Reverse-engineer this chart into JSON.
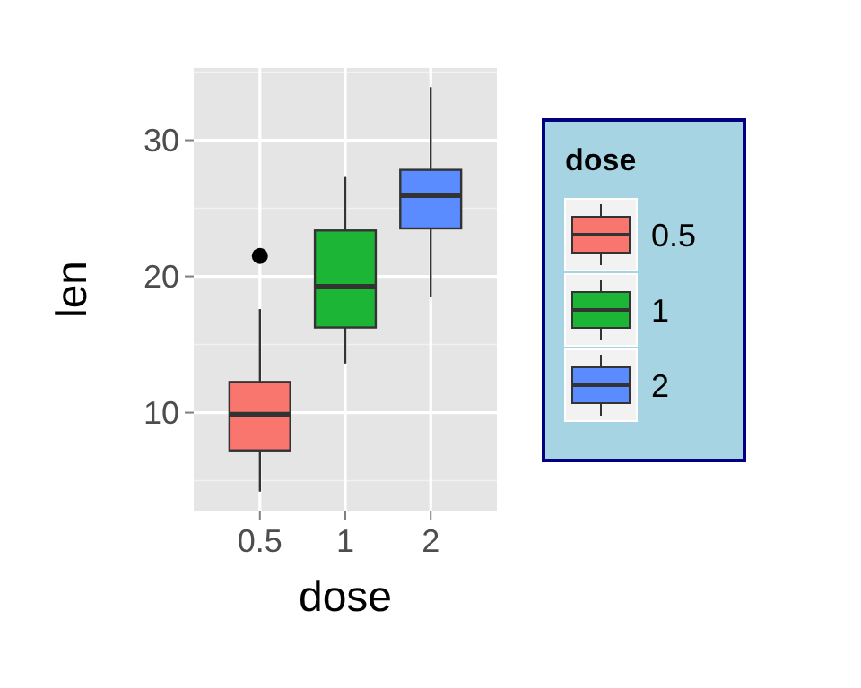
{
  "chart_data": {
    "type": "box",
    "xlabel": "dose",
    "ylabel": "len",
    "legend_title": "dose",
    "categories": [
      "0.5",
      "1",
      "2"
    ],
    "ylim": [
      2.8,
      35.3
    ],
    "yticks": [
      10,
      20,
      30
    ],
    "grid": true,
    "legend": "right",
    "series": [
      {
        "name": "0.5",
        "color": "#f8766d",
        "boxes": [
          {
            "low": 4.2,
            "q1": 7.225,
            "median": 9.85,
            "q3": 12.25,
            "high": 17.6,
            "outliers": [
              21.5
            ]
          },
          null,
          null
        ]
      },
      {
        "name": "1",
        "color": "#1db535",
        "boxes": [
          null,
          {
            "low": 13.6,
            "q1": 16.25,
            "median": 19.25,
            "q3": 23.375,
            "high": 27.3
          },
          null
        ]
      },
      {
        "name": "2",
        "color": "#5b8cff",
        "boxes": [
          null,
          null,
          {
            "low": 18.5,
            "q1": 23.525,
            "median": 25.95,
            "q3": 27.825,
            "high": 33.9
          }
        ]
      }
    ]
  }
}
